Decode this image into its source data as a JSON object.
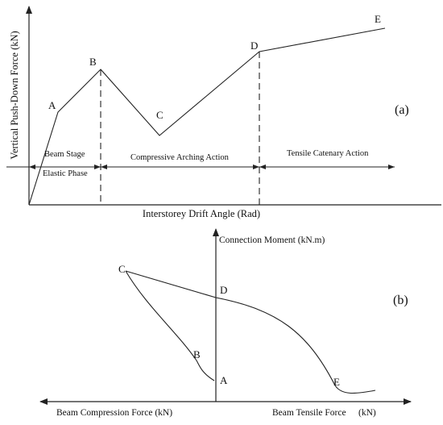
{
  "panel_a": {
    "y_axis_label": "Vertical Push-Down Force (kN)",
    "x_axis_label": "Interstorey Drift Angle (Rad)",
    "tag": "(a)",
    "points": {
      "A": "A",
      "B": "B",
      "C": "C",
      "D": "D",
      "E": "E"
    },
    "stages": {
      "beam_stage": "Beam Stage",
      "elastic_phase": "Elastic Phase",
      "compressive_arching": "Compressive Arching Action",
      "tensile_catenary": "Tensile Catenary Action"
    }
  },
  "panel_b": {
    "y_axis_label": "Connection Moment (kN.m)",
    "x_left_label": "Beam Compression Force  (kN)",
    "x_right_label": "Beam Tensile Force",
    "x_right_unit": "(kN)",
    "tag": "(b)",
    "points": {
      "A": "A",
      "B": "B",
      "C": "C",
      "D": "D",
      "E": "E"
    }
  }
}
